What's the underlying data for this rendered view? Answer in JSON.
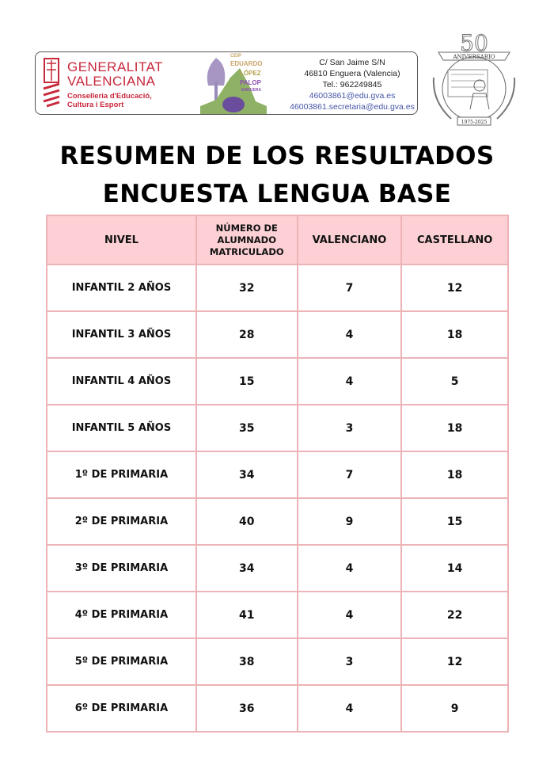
{
  "letterhead": {
    "gv_line1": "GENERALITAT",
    "gv_line2": "VALENCIANA",
    "gv_sub1": "Conselleria d'Educació,",
    "gv_sub2": "Cultura i Esport",
    "school_lines": [
      "CEIP",
      "EDUARDO",
      "LÓPEZ",
      "PALOP",
      "ENGUERA"
    ],
    "address1": "C/ San Jaime S/N",
    "address2": "46810 Enguera  (Valencia)",
    "phone": "Tel.: 962249845",
    "email1": "46003861@edu.gva.es",
    "email2": "46003861.secretaria@edu.gva.es",
    "seal_text": [
      "50",
      "ANIVERSARIO",
      "1975-2025"
    ]
  },
  "title_line1": "RESUMEN DE LOS RESULTADOS",
  "title_line2": "ENCUESTA LENGUA BASE",
  "colors": {
    "header_bg": "#fcd0d4",
    "border": "#eeb3b7",
    "gv_red": "#c8283c"
  },
  "table": {
    "headers": [
      "NIVEL",
      "NÚMERO DE ALUMNADO MATRICULADO",
      "VALENCIANO",
      "CASTELLANO"
    ],
    "rows": [
      [
        "INFANTIL 2 AÑOS",
        "32",
        "7",
        "12"
      ],
      [
        "INFANTIL 3 AÑOS",
        "28",
        "4",
        "18"
      ],
      [
        "INFANTIL 4 AÑOS",
        "15",
        "4",
        "5"
      ],
      [
        "INFANTIL 5 AÑOS",
        "35",
        "3",
        "18"
      ],
      [
        "1º DE PRIMARIA",
        "34",
        "7",
        "18"
      ],
      [
        "2º DE PRIMARIA",
        "40",
        "9",
        "15"
      ],
      [
        "3º DE PRIMARIA",
        "34",
        "4",
        "14"
      ],
      [
        "4º DE PRIMARIA",
        "41",
        "4",
        "22"
      ],
      [
        "5º DE PRIMARIA",
        "38",
        "3",
        "12"
      ],
      [
        "6º DE PRIMARIA",
        "36",
        "4",
        "9"
      ]
    ]
  }
}
